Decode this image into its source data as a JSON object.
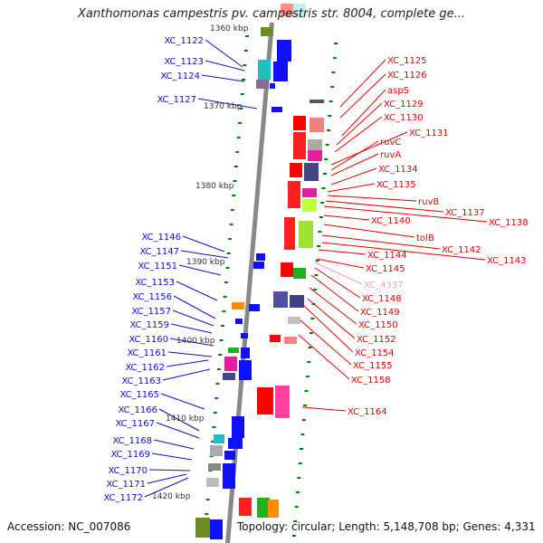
{
  "title": "Xanthomonas campestris pv. campestris str. 8004, complete ge...",
  "footer": {
    "accession": "Accession: NC_007086",
    "summary": "Topology: circular; Length: 5,148,708 bp; Genes: 4,331"
  },
  "scale_labels": [
    "1360 kbp",
    "1370 kbp",
    "1380 kbp",
    "1390 kbp",
    "1400 kbp",
    "1410 kbp",
    "1420 kbp"
  ],
  "left_genes": [
    "XC_1122",
    "XC_1123",
    "XC_1124",
    "XC_1127",
    "XC_1146",
    "XC_1147",
    "XC_1151",
    "XC_1153",
    "XC_1156",
    "XC_1157",
    "XC_1159",
    "XC_1160",
    "XC_1161",
    "XC_1162",
    "XC_1163",
    "XC_1165",
    "XC_1166",
    "XC_1167",
    "XC_1168",
    "XC_1169",
    "XC_1170",
    "XC_1171",
    "XC_1172"
  ],
  "right_genes": [
    "XC_1125",
    "XC_1126",
    "aspS",
    "XC_1129",
    "XC_1130",
    "XC_1131",
    "ruvC",
    "ruvA",
    "XC_1134",
    "XC_1135",
    "ruvB",
    "XC_1137",
    "XC_1138",
    "XC_1140",
    "tolB",
    "XC_1142",
    "XC_1143",
    "XC_1144",
    "XC_1145",
    "XC_4337",
    "XC_1148",
    "XC_1149",
    "XC_1150",
    "XC_1152",
    "XC_1154",
    "XC_1155",
    "XC_1158",
    "XC_1164"
  ],
  "colors": {
    "left_label": "#1010c0",
    "right_label": "#e00000",
    "pseudo_label": "#f0a0c0",
    "backbone": "#888888",
    "tick": "#008000"
  }
}
